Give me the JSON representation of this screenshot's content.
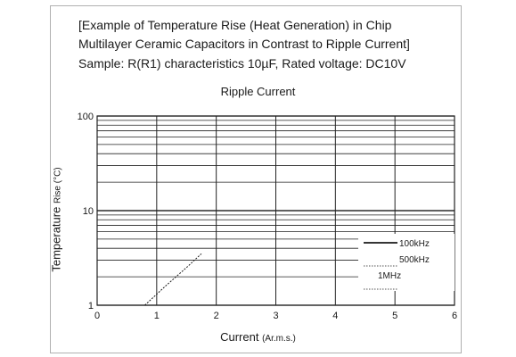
{
  "title": {
    "line1": "[Example of Temperature Rise (Heat Generation) in Chip",
    "line2": "Multilayer Ceramic Capacitors in Contrast to Ripple Current]",
    "line3": "Sample: R(R1) characteristics 10µF, Rated voltage: DC10V"
  },
  "chart_data": {
    "type": "line",
    "subtitle": "Ripple Current",
    "xlabel": "Current",
    "xlabel_unit": "(Ar.m.s.)",
    "ylabel": "Temperature",
    "ylabel_unit": "Rise (°C)",
    "xlim": [
      0,
      6
    ],
    "ylim": [
      1,
      100
    ],
    "yscale": "log",
    "grid": true,
    "legend_placement": "lower-right",
    "x_ticks": [
      "0",
      "1",
      "2",
      "3",
      "4",
      "5",
      "6"
    ],
    "y_ticks": [
      "1",
      "10",
      "100"
    ],
    "series": [
      {
        "name": "100kHz",
        "style": "solid",
        "x": [],
        "y": []
      },
      {
        "name": "500kHz",
        "style": "dashed",
        "x": [],
        "y": []
      },
      {
        "name": "1MHz",
        "style": "dotted",
        "x": [
          0.8,
          1.15,
          1.5,
          1.75
        ],
        "y": [
          1.0,
          1.6,
          2.5,
          3.5
        ]
      }
    ]
  }
}
